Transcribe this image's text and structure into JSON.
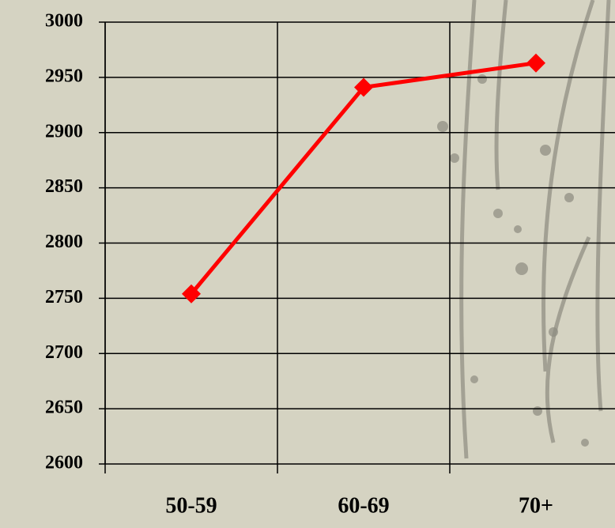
{
  "chart_data": {
    "type": "line",
    "categories": [
      "50-59",
      "60-69",
      "70+"
    ],
    "series": [
      {
        "color": "#ff0000",
        "values": [
          2754,
          2941,
          2963
        ]
      }
    ],
    "ylim": [
      2600,
      3000
    ],
    "yticks": [
      2600,
      2650,
      2700,
      2750,
      2800,
      2850,
      2900,
      2950,
      3000
    ],
    "grid": true
  }
}
